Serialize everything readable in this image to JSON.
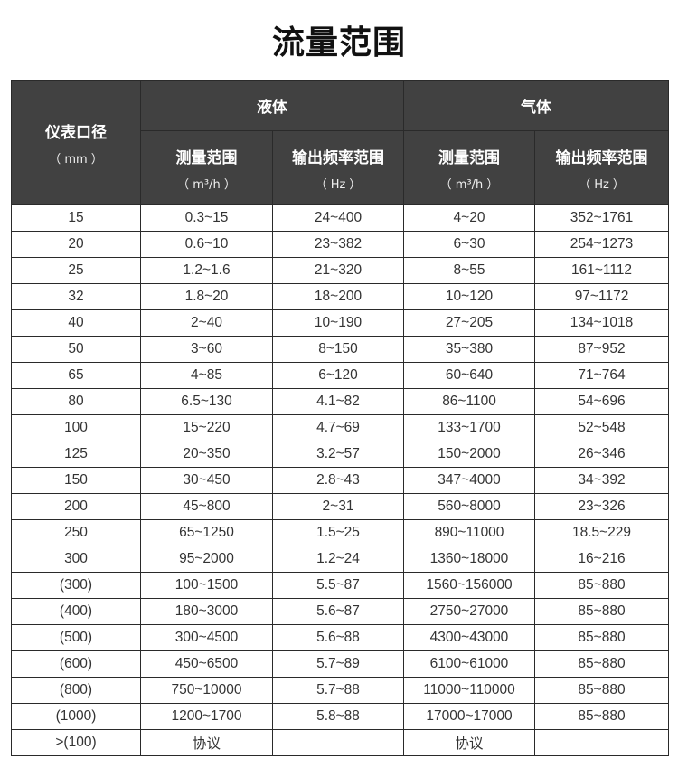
{
  "title": "流量范围",
  "header": {
    "diameter": "仪表口径",
    "diameter_unit": "（ mm ）",
    "liquid": "液体",
    "gas": "气体",
    "range": "测量范围",
    "range_unit": "（ m³/h ）",
    "freq": "输出频率范围",
    "freq_unit": "（ Hz ）"
  },
  "rows": [
    [
      "15",
      "0.3~15",
      "24~400",
      "4~20",
      "352~1761"
    ],
    [
      "20",
      "0.6~10",
      "23~382",
      "6~30",
      "254~1273"
    ],
    [
      "25",
      "1.2~1.6",
      "21~320",
      "8~55",
      "161~1112"
    ],
    [
      "32",
      "1.8~20",
      "18~200",
      "10~120",
      "97~1172"
    ],
    [
      "40",
      "2~40",
      "10~190",
      "27~205",
      "134~1018"
    ],
    [
      "50",
      "3~60",
      "8~150",
      "35~380",
      "87~952"
    ],
    [
      "65",
      "4~85",
      "6~120",
      "60~640",
      "71~764"
    ],
    [
      "80",
      "6.5~130",
      "4.1~82",
      "86~1100",
      "54~696"
    ],
    [
      "100",
      "15~220",
      "4.7~69",
      "133~1700",
      "52~548"
    ],
    [
      "125",
      "20~350",
      "3.2~57",
      "150~2000",
      "26~346"
    ],
    [
      "150",
      "30~450",
      "2.8~43",
      "347~4000",
      "34~392"
    ],
    [
      "200",
      "45~800",
      "2~31",
      "560~8000",
      "23~326"
    ],
    [
      "250",
      "65~1250",
      "1.5~25",
      "890~11000",
      "18.5~229"
    ],
    [
      "300",
      "95~2000",
      "1.2~24",
      "1360~18000",
      "16~216"
    ],
    [
      "(300)",
      "100~1500",
      "5.5~87",
      "1560~156000",
      "85~880"
    ],
    [
      "(400)",
      "180~3000",
      "5.6~87",
      "2750~27000",
      "85~880"
    ],
    [
      "(500)",
      "300~4500",
      "5.6~88",
      "4300~43000",
      "85~880"
    ],
    [
      "(600)",
      "450~6500",
      "5.7~89",
      "6100~61000",
      "85~880"
    ],
    [
      "(800)",
      "750~10000",
      "5.7~88",
      "11000~110000",
      "85~880"
    ],
    [
      "(1000)",
      "1200~1700",
      "5.8~88",
      "17000~17000",
      "85~880"
    ],
    [
      ">(100)",
      "协议",
      "",
      "协议",
      ""
    ]
  ]
}
